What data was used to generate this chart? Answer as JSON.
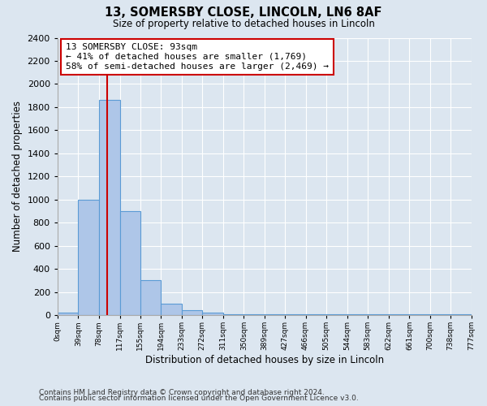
{
  "title": "13, SOMERSBY CLOSE, LINCOLN, LN6 8AF",
  "subtitle": "Size of property relative to detached houses in Lincoln",
  "xlabel": "Distribution of detached houses by size in Lincoln",
  "ylabel": "Number of detached properties",
  "footer_line1": "Contains HM Land Registry data © Crown copyright and database right 2024.",
  "footer_line2": "Contains public sector information licensed under the Open Government Licence v3.0.",
  "bin_edges": [
    0,
    39,
    78,
    117,
    155,
    194,
    233,
    272,
    311,
    350,
    389,
    427,
    466,
    505,
    544,
    583,
    622,
    661,
    700,
    738,
    777
  ],
  "bin_labels": [
    "0sqm",
    "39sqm",
    "78sqm",
    "117sqm",
    "155sqm",
    "194sqm",
    "233sqm",
    "272sqm",
    "311sqm",
    "350sqm",
    "389sqm",
    "427sqm",
    "466sqm",
    "505sqm",
    "544sqm",
    "583sqm",
    "622sqm",
    "661sqm",
    "700sqm",
    "738sqm",
    "777sqm"
  ],
  "bar_heights": [
    20,
    1000,
    1860,
    900,
    300,
    100,
    40,
    20,
    5,
    5,
    5,
    5,
    5,
    5,
    5,
    5,
    5,
    5,
    5,
    5
  ],
  "bar_color": "#aec6e8",
  "bar_edge_color": "#5b9bd5",
  "vline_x": 93,
  "vline_color": "#cc0000",
  "annotation_title": "13 SOMERSBY CLOSE: 93sqm",
  "annotation_line1": "← 41% of detached houses are smaller (1,769)",
  "annotation_line2": "58% of semi-detached houses are larger (2,469) →",
  "annotation_box_color": "#ffffff",
  "annotation_box_edge": "#cc0000",
  "ylim": [
    0,
    2400
  ],
  "yticks": [
    0,
    200,
    400,
    600,
    800,
    1000,
    1200,
    1400,
    1600,
    1800,
    2000,
    2200,
    2400
  ],
  "background_color": "#dce6f0",
  "grid_color": "#ffffff"
}
